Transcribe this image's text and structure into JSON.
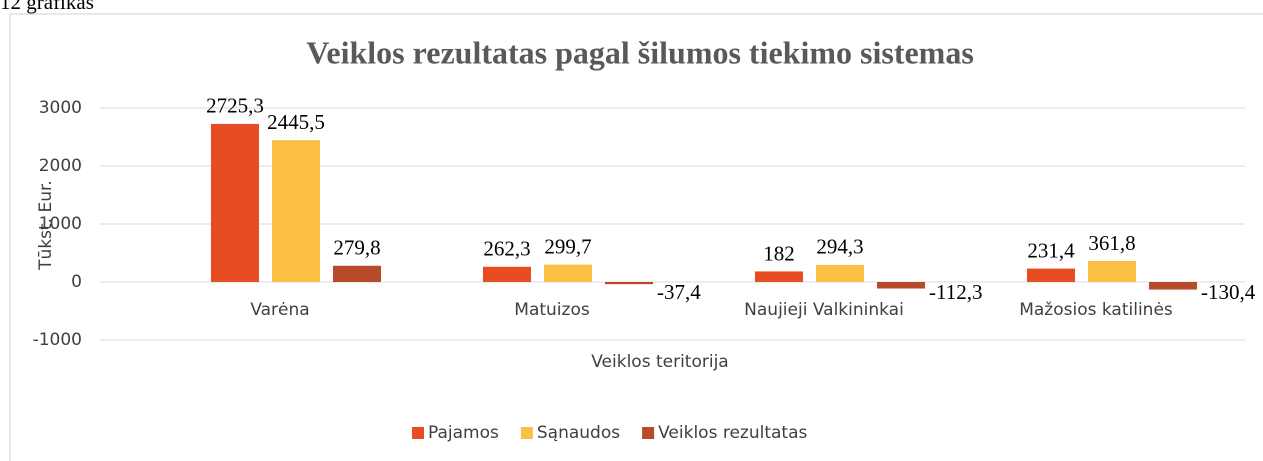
{
  "caption": "12 grafikas",
  "chart_data": {
    "type": "bar",
    "title": "Veiklos rezultatas pagal šilumos tiekimo sistemas",
    "y_label": "Tūkst. Eur.",
    "x_label": "Veiklos teritorija",
    "categories": [
      "Varėna",
      "Matuizos",
      "Naujieji Valkininkai",
      "Mažosios katilinės"
    ],
    "series": [
      {
        "name": "Pajamos",
        "color": "#e84c22",
        "values": [
          2725.3,
          262.3,
          182,
          231.4
        ],
        "value_labels": [
          "2725,3",
          "262,3",
          "182",
          "231,4"
        ]
      },
      {
        "name": "Sąnaudos",
        "color": "#fbbf45",
        "values": [
          2445.5,
          299.7,
          294.3,
          361.8
        ],
        "value_labels": [
          "2445,5",
          "299,7",
          "294,3",
          "361,8"
        ]
      },
      {
        "name": "Veiklos rezultatas",
        "color": "#b84a2a",
        "values": [
          279.8,
          -37.4,
          -112.3,
          -130.4
        ],
        "value_labels": [
          "279,8",
          "-37,4",
          "-112,3",
          "-130,4"
        ]
      }
    ],
    "ylim": [
      -1000,
      3000
    ],
    "yticks": [
      -1000,
      0,
      1000,
      2000,
      3000
    ],
    "grid": true,
    "legend": "bottom"
  }
}
